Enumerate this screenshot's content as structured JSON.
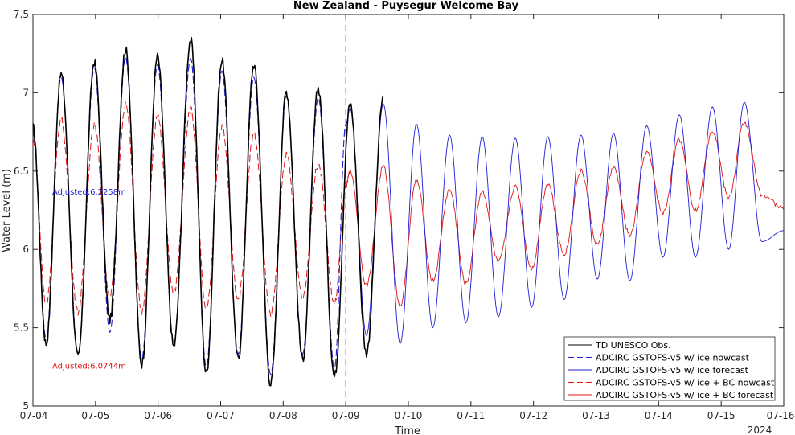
{
  "chart_data": {
    "type": "line",
    "title": "New Zealand - Puysegur Welcome Bay",
    "xlabel": "Time",
    "ylabel": "Water Level (m)",
    "year_label": "2024",
    "x_tick_labels": [
      "07-04",
      "07-05",
      "07-06",
      "07-07",
      "07-08",
      "07-09",
      "07-10",
      "07-11",
      "07-12",
      "07-13",
      "07-14",
      "07-15",
      "07-16"
    ],
    "xlim_days": [
      0,
      12
    ],
    "ylim": [
      5,
      7.5
    ],
    "y_ticks": [
      5,
      5.5,
      6,
      6.5,
      7,
      7.5
    ],
    "y_tick_labels": [
      "5",
      "5.5",
      "6",
      "6.5",
      "7",
      "7.5"
    ],
    "nowcast_forecast_split": "07-09",
    "legend_position": "bottom-right",
    "colors": {
      "obs": "#000000",
      "model": "#1f1fd6",
      "bc": "#e01414"
    },
    "annotations": [
      {
        "text": "Adjusted:6.2258m",
        "color": "#1f1fd6",
        "y": 6.37
      },
      {
        "text": "Adjusted:6.0744m",
        "color": "#e01414",
        "y": 5.26
      }
    ],
    "series": [
      {
        "name": "TD UNESCO Obs.",
        "style": "solid",
        "color": "#000000",
        "extrema": [
          [
            0.0,
            6.78
          ],
          [
            0.21,
            5.4
          ],
          [
            0.45,
            7.12
          ],
          [
            0.72,
            5.31
          ],
          [
            0.98,
            7.2
          ],
          [
            1.23,
            5.55
          ],
          [
            1.48,
            7.28
          ],
          [
            1.74,
            5.27
          ],
          [
            1.99,
            7.23
          ],
          [
            2.25,
            5.38
          ],
          [
            2.52,
            7.34
          ],
          [
            2.77,
            5.21
          ],
          [
            3.02,
            7.21
          ],
          [
            3.28,
            5.3
          ],
          [
            3.53,
            7.18
          ],
          [
            3.8,
            5.14
          ],
          [
            4.05,
            7.01
          ],
          [
            4.31,
            5.3
          ],
          [
            4.56,
            7.03
          ],
          [
            4.82,
            5.19
          ],
          [
            5.07,
            6.93
          ],
          [
            5.33,
            5.34
          ],
          [
            5.6,
            6.97
          ]
        ]
      },
      {
        "name": "ADCIRC GSTOFS-v5 w/ ice nowcast",
        "style": "dashed",
        "color": "#1f1fd6",
        "extrema": [
          [
            0.0,
            6.75
          ],
          [
            0.21,
            5.43
          ],
          [
            0.45,
            7.1
          ],
          [
            0.72,
            5.33
          ],
          [
            0.98,
            7.16
          ],
          [
            1.23,
            5.47
          ],
          [
            1.48,
            7.23
          ],
          [
            1.74,
            5.3
          ],
          [
            1.99,
            7.18
          ],
          [
            2.25,
            5.4
          ],
          [
            2.52,
            7.22
          ],
          [
            2.77,
            5.25
          ],
          [
            3.02,
            7.14
          ],
          [
            3.28,
            5.33
          ],
          [
            3.53,
            7.1
          ],
          [
            3.8,
            5.2
          ],
          [
            4.05,
            6.98
          ],
          [
            4.31,
            5.33
          ],
          [
            4.56,
            6.97
          ],
          [
            4.82,
            5.24
          ],
          [
            5.0,
            6.8
          ]
        ]
      },
      {
        "name": "ADCIRC GSTOFS-v5 w/ ice forecast",
        "style": "solid",
        "color": "#1f1fd6",
        "extrema": [
          [
            5.0,
            6.8
          ],
          [
            5.07,
            6.9
          ],
          [
            5.33,
            5.45
          ],
          [
            5.6,
            6.93
          ],
          [
            5.87,
            5.4
          ],
          [
            6.13,
            6.8
          ],
          [
            6.39,
            5.5
          ],
          [
            6.66,
            6.73
          ],
          [
            6.92,
            5.53
          ],
          [
            7.18,
            6.72
          ],
          [
            7.44,
            5.57
          ],
          [
            7.71,
            6.71
          ],
          [
            7.97,
            5.63
          ],
          [
            8.23,
            6.72
          ],
          [
            8.49,
            5.68
          ],
          [
            8.76,
            6.73
          ],
          [
            9.02,
            5.81
          ],
          [
            9.28,
            6.74
          ],
          [
            9.54,
            5.8
          ],
          [
            9.81,
            6.79
          ],
          [
            10.07,
            5.95
          ],
          [
            10.33,
            6.86
          ],
          [
            10.59,
            5.95
          ],
          [
            10.86,
            6.91
          ],
          [
            11.12,
            6.0
          ],
          [
            11.37,
            6.94
          ],
          [
            11.65,
            6.05
          ],
          [
            12.0,
            6.12
          ]
        ]
      },
      {
        "name": "ADCIRC GSTOFS-v5 w/ ice + BC nowcast",
        "style": "dashed",
        "color": "#e01414",
        "extrema": [
          [
            0.0,
            6.7
          ],
          [
            0.21,
            5.65
          ],
          [
            0.45,
            6.83
          ],
          [
            0.72,
            5.6
          ],
          [
            0.98,
            6.8
          ],
          [
            1.23,
            5.7
          ],
          [
            1.48,
            6.93
          ],
          [
            1.74,
            5.6
          ],
          [
            1.99,
            6.85
          ],
          [
            2.25,
            5.72
          ],
          [
            2.52,
            6.9
          ],
          [
            2.77,
            5.61
          ],
          [
            3.02,
            6.78
          ],
          [
            3.28,
            5.68
          ],
          [
            3.53,
            6.74
          ],
          [
            3.8,
            5.58
          ],
          [
            4.05,
            6.6
          ],
          [
            4.31,
            5.7
          ],
          [
            4.56,
            6.55
          ],
          [
            4.82,
            5.65
          ],
          [
            5.0,
            6.4
          ]
        ]
      },
      {
        "name": "ADCIRC GSTOFS-v5 w/ ice + BC forecast",
        "style": "solid",
        "color": "#e01414",
        "extrema": [
          [
            5.0,
            6.4
          ],
          [
            5.07,
            6.5
          ],
          [
            5.33,
            5.77
          ],
          [
            5.6,
            6.53
          ],
          [
            5.87,
            5.64
          ],
          [
            6.13,
            6.44
          ],
          [
            6.39,
            5.8
          ],
          [
            6.66,
            6.38
          ],
          [
            6.92,
            5.78
          ],
          [
            7.18,
            6.37
          ],
          [
            7.44,
            5.92
          ],
          [
            7.71,
            6.4
          ],
          [
            7.97,
            5.88
          ],
          [
            8.23,
            6.42
          ],
          [
            8.49,
            5.97
          ],
          [
            8.76,
            6.5
          ],
          [
            9.02,
            6.03
          ],
          [
            9.28,
            6.52
          ],
          [
            9.54,
            6.09
          ],
          [
            9.81,
            6.62
          ],
          [
            10.07,
            6.23
          ],
          [
            10.33,
            6.7
          ],
          [
            10.59,
            6.25
          ],
          [
            10.86,
            6.76
          ],
          [
            11.12,
            6.33
          ],
          [
            11.37,
            6.81
          ],
          [
            11.65,
            6.35
          ],
          [
            12.0,
            6.26
          ]
        ]
      }
    ]
  }
}
